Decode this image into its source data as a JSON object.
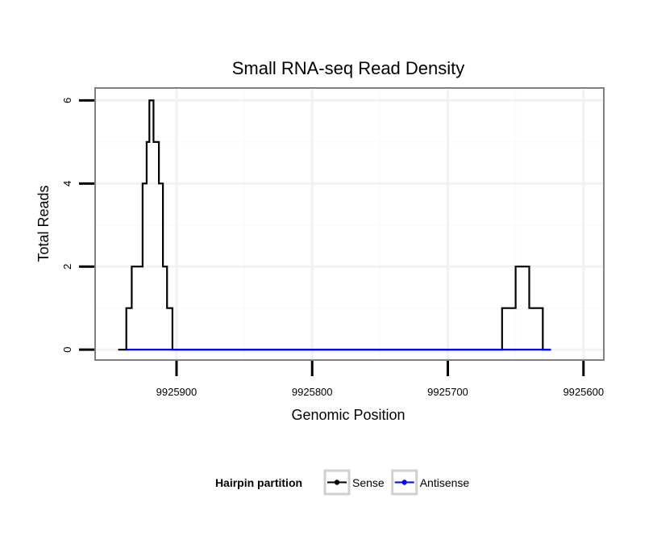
{
  "chart_data": {
    "type": "line",
    "title": "Small RNA-seq Read Density",
    "xlabel": "Genomic Position",
    "ylabel": "Total Reads",
    "xlim": [
      9925960,
      9925585
    ],
    "ylim": [
      -0.25,
      6.3
    ],
    "x_reversed": true,
    "x_ticks": [
      9925900,
      9925800,
      9925700,
      9925600
    ],
    "x_tick_labels": [
      "9925900",
      "9925800",
      "9925700",
      "9925600"
    ],
    "y_ticks": [
      0,
      2,
      4,
      6
    ],
    "y_tick_labels": [
      "0",
      "2",
      "4",
      "6"
    ],
    "grid": true,
    "legend": {
      "title": "Hairpin partition",
      "position": "bottom",
      "entries": [
        {
          "name": "Sense",
          "color": "#000000"
        },
        {
          "name": "Antisense",
          "color": "#0000ff"
        }
      ]
    },
    "series": [
      {
        "name": "Sense",
        "color": "#000000",
        "x": [
          9925943,
          9925937,
          9925937,
          9925933,
          9925933,
          9925925,
          9925925,
          9925922,
          9925922,
          9925920,
          9925920,
          9925917,
          9925917,
          9925913,
          9925913,
          9925910,
          9925910,
          9925907,
          9925907,
          9925903,
          9925903,
          9925898,
          9925898,
          9925890,
          9925890,
          9925880,
          9925800,
          9925700,
          9925660,
          9925660,
          9925650,
          9925650,
          9925640,
          9925640,
          9925630,
          9925630,
          9925624,
          9925624
        ],
        "y": [
          0,
          0,
          1,
          1,
          2,
          2,
          4,
          4,
          5,
          5,
          6,
          6,
          5,
          5,
          4,
          4,
          2,
          2,
          1,
          1,
          0,
          0,
          0,
          0,
          0,
          0,
          0,
          0,
          0,
          1,
          1,
          2,
          2,
          1,
          1,
          0,
          0,
          0
        ]
      },
      {
        "name": "Antisense",
        "color": "#0000ff",
        "x": [
          9925937,
          9925898,
          9925660,
          9925624
        ],
        "y": [
          0,
          0,
          0,
          0
        ]
      }
    ]
  }
}
